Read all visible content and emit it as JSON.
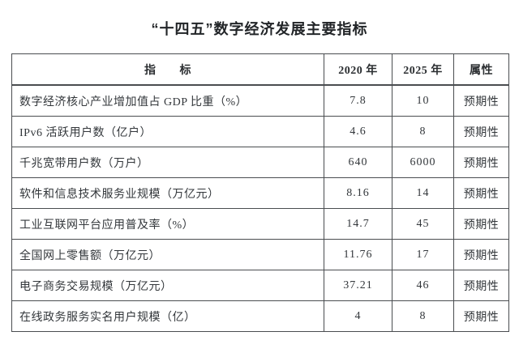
{
  "title": "“十四五”数字经济发展主要指标",
  "table": {
    "headers": [
      "指　　标",
      "2020 年",
      "2025 年",
      "属性"
    ],
    "rows": [
      {
        "indicator": "数字经济核心产业增加值占 GDP 比重（%）",
        "y2020": "7.8",
        "y2025": "10",
        "attr": "预期性"
      },
      {
        "indicator": "IPv6 活跃用户数（亿户）",
        "y2020": "4.6",
        "y2025": "8",
        "attr": "预期性"
      },
      {
        "indicator": "千兆宽带用户数（万户）",
        "y2020": "640",
        "y2025": "6000",
        "attr": "预期性"
      },
      {
        "indicator": "软件和信息技术服务业规模（万亿元）",
        "y2020": "8.16",
        "y2025": "14",
        "attr": "预期性"
      },
      {
        "indicator": "工业互联网平台应用普及率（%）",
        "y2020": "14.7",
        "y2025": "45",
        "attr": "预期性"
      },
      {
        "indicator": "全国网上零售额（万亿元）",
        "y2020": "11.76",
        "y2025": "17",
        "attr": "预期性"
      },
      {
        "indicator": "电子商务交易规模（万亿元）",
        "y2020": "37.21",
        "y2025": "46",
        "attr": "预期性"
      },
      {
        "indicator": "在线政务服务实名用户规模（亿）",
        "y2020": "4",
        "y2025": "8",
        "attr": "预期性"
      }
    ]
  }
}
